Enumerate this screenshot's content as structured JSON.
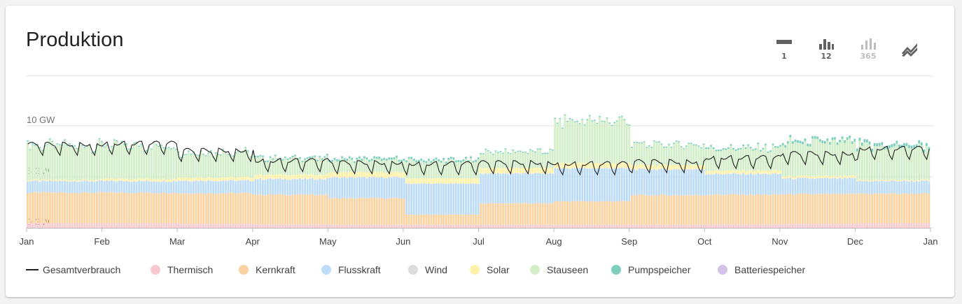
{
  "title": "Produktion",
  "toolbar": {
    "buttons": [
      {
        "name": "view-1",
        "label": "1",
        "enabled": true
      },
      {
        "name": "view-12",
        "label": "12",
        "enabled": true
      },
      {
        "name": "view-365",
        "label": "365",
        "enabled": false
      },
      {
        "name": "view-trend",
        "label": "",
        "enabled": true
      }
    ]
  },
  "chart_data": {
    "type": "bar",
    "stacked": true,
    "x_ticks": [
      "Jan",
      "Feb",
      "Mar",
      "Apr",
      "May",
      "Jun",
      "Jul",
      "Aug",
      "Sep",
      "Oct",
      "Nov",
      "Dec",
      "Jan"
    ],
    "y_ticks": [
      "0 GW",
      "5 GW",
      "10 GW"
    ],
    "ylim": [
      0,
      11.5
    ],
    "grid": true,
    "legend_position": "bottom",
    "legend": [
      {
        "name": "Gesamtverbrauch",
        "type": "line",
        "color": "#212121"
      },
      {
        "name": "Thermisch",
        "type": "bar",
        "color": "#f8c8cf"
      },
      {
        "name": "Kernkraft",
        "type": "bar",
        "color": "#fbd3a1"
      },
      {
        "name": "Flusskraft",
        "type": "bar",
        "color": "#bcdcf7"
      },
      {
        "name": "Wind",
        "type": "bar",
        "color": "#dcdcdc"
      },
      {
        "name": "Solar",
        "type": "bar",
        "color": "#fdf2a8"
      },
      {
        "name": "Stauseen",
        "type": "bar",
        "color": "#d3efc9"
      },
      {
        "name": "Pumpspeicher",
        "type": "bar",
        "color": "#7fcfbf"
      },
      {
        "name": "Batteriespeicher",
        "type": "bar",
        "color": "#d3c3ea"
      }
    ],
    "monthly_average_gw": {
      "Thermisch": [
        0.45,
        0.45,
        0.4,
        0.35,
        0.3,
        0.3,
        0.3,
        0.3,
        0.3,
        0.35,
        0.4,
        0.45
      ],
      "Kernkraft": [
        3.0,
        3.0,
        3.0,
        2.9,
        2.6,
        1.0,
        2.1,
        2.3,
        2.9,
        2.9,
        2.9,
        2.9
      ],
      "Flusskraft": [
        1.1,
        1.1,
        1.2,
        1.5,
        2.0,
        3.0,
        2.9,
        3.2,
        2.5,
        2.0,
        1.5,
        1.2
      ],
      "Wind": [
        0.05,
        0.05,
        0.05,
        0.05,
        0.05,
        0.05,
        0.05,
        0.05,
        0.05,
        0.05,
        0.05,
        0.05
      ],
      "Solar": [
        0.1,
        0.2,
        0.3,
        0.4,
        0.5,
        0.5,
        0.5,
        0.5,
        0.4,
        0.3,
        0.2,
        0.1
      ],
      "Stauseen": [
        3.4,
        3.3,
        2.5,
        1.6,
        1.2,
        1.7,
        1.6,
        4.2,
        2.0,
        2.2,
        3.3,
        3.3
      ],
      "Pumpspeicher": [
        0.1,
        0.1,
        0.1,
        0.15,
        0.2,
        0.2,
        0.1,
        0.1,
        0.1,
        0.15,
        0.25,
        0.3
      ],
      "Batteriespeicher": [
        0.0,
        0.0,
        0.0,
        0.0,
        0.0,
        0.0,
        0.0,
        0.0,
        0.0,
        0.0,
        0.0,
        0.0
      ]
    },
    "gesamtverbrauch_monthly_avg_gw": [
      8.2,
      8.3,
      7.6,
      6.6,
      6.4,
      6.3,
      6.4,
      6.3,
      6.5,
      6.9,
      7.3,
      7.8
    ]
  }
}
